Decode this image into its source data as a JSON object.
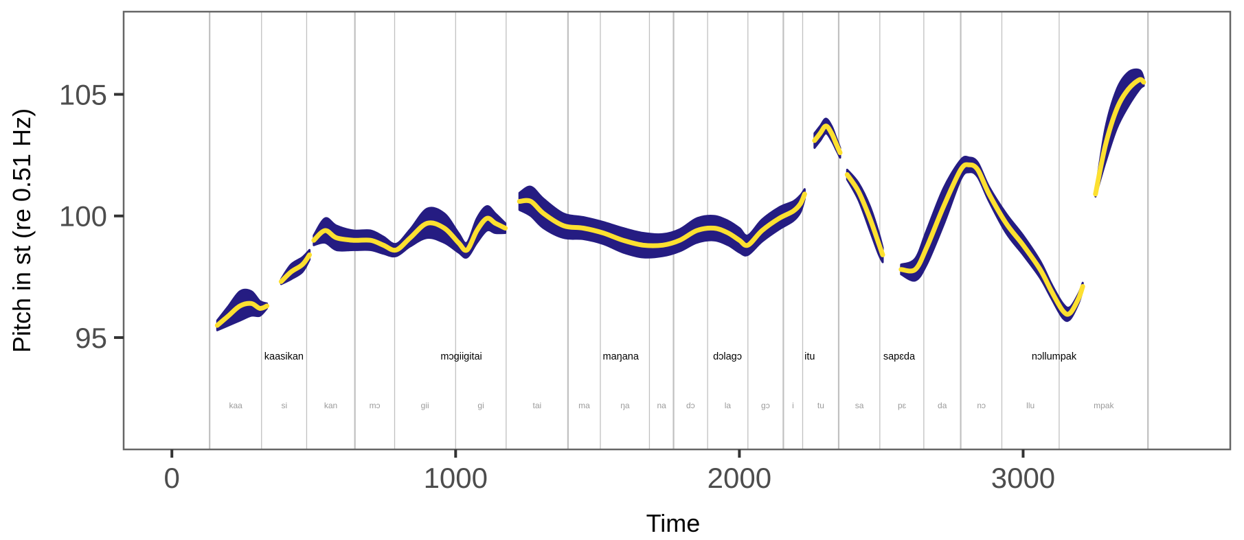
{
  "chart_data": {
    "type": "line",
    "title": "",
    "xlabel": "Time",
    "ylabel": "Pitch in st (re 0.51 Hz)",
    "xlim": [
      -170,
      3730
    ],
    "ylim": [
      90.4,
      108.4
    ],
    "x_ticks": [
      0,
      1000,
      2000,
      3000
    ],
    "y_ticks": [
      95,
      100,
      105
    ],
    "grid": false,
    "legend": "none",
    "colors": {
      "band": "#251c82",
      "line": "#fde030",
      "boundary": "#c0c0c0",
      "syllable_text": "#9a9a9a",
      "frame": "#666666"
    },
    "word_boundaries": [
      133,
      645,
      1396,
      1768,
      2155,
      2350,
      2780,
      3440
    ],
    "syllable_boundaries": [
      316,
      475,
      785,
      1000,
      1178,
      1510,
      1683,
      1888,
      2030,
      2223,
      2495,
      2650,
      2925,
      3127
    ],
    "words": [
      {
        "label": "kaasikan",
        "x": 395
      },
      {
        "label": "mɔgiigitai",
        "x": 1020
      },
      {
        "label": "maŋana",
        "x": 1582
      },
      {
        "label": "dɔlagɔ",
        "x": 1958
      },
      {
        "label": "itu",
        "x": 2248
      },
      {
        "label": "sapɛda",
        "x": 2563
      },
      {
        "label": "nɔllumpak",
        "x": 3109
      }
    ],
    "syllables": [
      {
        "label": "kaa",
        "x": 225
      },
      {
        "label": "si",
        "x": 396
      },
      {
        "label": "kan",
        "x": 560
      },
      {
        "label": "mɔ",
        "x": 715
      },
      {
        "label": "gii",
        "x": 892
      },
      {
        "label": "gi",
        "x": 1089
      },
      {
        "label": "tai",
        "x": 1287
      },
      {
        "label": "ma",
        "x": 1453
      },
      {
        "label": "ŋa",
        "x": 1597
      },
      {
        "label": "na",
        "x": 1726
      },
      {
        "label": "dɔ",
        "x": 1828
      },
      {
        "label": "la",
        "x": 1959
      },
      {
        "label": "gɔ",
        "x": 2092
      },
      {
        "label": "i",
        "x": 2189
      },
      {
        "label": "tu",
        "x": 2287
      },
      {
        "label": "sa",
        "x": 2423
      },
      {
        "label": "pɛ",
        "x": 2573
      },
      {
        "label": "da",
        "x": 2715
      },
      {
        "label": "nɔ",
        "x": 2853
      },
      {
        "label": "llu",
        "x": 3026
      },
      {
        "label": "mpak",
        "x": 3284
      }
    ],
    "series": [
      {
        "points": [
          [
            160,
            95.5,
            0.2
          ],
          [
            200,
            95.9,
            0.4
          ],
          [
            240,
            96.3,
            0.6
          ],
          [
            280,
            96.4,
            0.5
          ],
          [
            310,
            96.2,
            0.3
          ],
          [
            335,
            96.3,
            0.1
          ]
        ],
        "lineEnd": 335
      },
      {
        "points": [
          [
            385,
            97.3,
            0.1
          ],
          [
            420,
            97.7,
            0.3
          ],
          [
            460,
            98.0,
            0.3
          ],
          [
            485,
            98.4,
            0.2
          ]
        ],
        "lineEnd": 485
      },
      {
        "points": [
          [
            500,
            99.0,
            0.2
          ],
          [
            540,
            99.4,
            0.5
          ],
          [
            580,
            99.1,
            0.5
          ],
          [
            640,
            99.0,
            0.4
          ],
          [
            700,
            99.0,
            0.4
          ],
          [
            745,
            98.8,
            0.35
          ],
          [
            790,
            98.6,
            0.25
          ],
          [
            840,
            99.1,
            0.35
          ],
          [
            900,
            99.7,
            0.6
          ],
          [
            960,
            99.5,
            0.6
          ],
          [
            1010,
            98.9,
            0.4
          ],
          [
            1040,
            98.6,
            0.3
          ],
          [
            1075,
            99.4,
            0.5
          ],
          [
            1110,
            99.9,
            0.5
          ],
          [
            1140,
            99.7,
            0.4
          ],
          [
            1175,
            99.5,
            0.2
          ]
        ],
        "lineEnd": 1175
      },
      {
        "points": [
          [
            1225,
            100.6,
            0.35
          ],
          [
            1265,
            100.6,
            0.6
          ],
          [
            1310,
            100.1,
            0.6
          ],
          [
            1380,
            99.6,
            0.5
          ],
          [
            1450,
            99.5,
            0.45
          ],
          [
            1520,
            99.3,
            0.45
          ],
          [
            1590,
            99.0,
            0.5
          ],
          [
            1660,
            98.8,
            0.5
          ],
          [
            1730,
            98.8,
            0.45
          ],
          [
            1790,
            99.0,
            0.45
          ],
          [
            1850,
            99.4,
            0.5
          ],
          [
            1910,
            99.5,
            0.5
          ],
          [
            1960,
            99.3,
            0.5
          ],
          [
            2000,
            99.0,
            0.5
          ],
          [
            2030,
            98.8,
            0.4
          ],
          [
            2080,
            99.4,
            0.45
          ],
          [
            2140,
            99.9,
            0.45
          ],
          [
            2190,
            100.2,
            0.4
          ],
          [
            2215,
            100.5,
            0.35
          ],
          [
            2230,
            100.9,
            0.2
          ]
        ],
        "lineEnd": 2230
      },
      {
        "points": [
          [
            2265,
            103.1,
            0.3
          ],
          [
            2285,
            103.4,
            0.3
          ],
          [
            2305,
            103.7,
            0.3
          ],
          [
            2325,
            103.4,
            0.3
          ],
          [
            2340,
            103.0,
            0.25
          ],
          [
            2355,
            102.6,
            0.2
          ]
        ],
        "lineEnd": 2355
      },
      {
        "points": [
          [
            2380,
            101.7,
            0.2
          ],
          [
            2420,
            101.0,
            0.35
          ],
          [
            2460,
            99.9,
            0.5
          ],
          [
            2490,
            98.9,
            0.45
          ],
          [
            2505,
            98.4,
            0.3
          ]
        ],
        "lineEnd": 2505
      },
      {
        "points": [
          [
            2570,
            97.8,
            0.2
          ],
          [
            2620,
            97.8,
            0.45
          ],
          [
            2660,
            98.7,
            0.7
          ],
          [
            2720,
            100.4,
            0.75
          ],
          [
            2780,
            101.9,
            0.4
          ],
          [
            2810,
            102.1,
            0.3
          ],
          [
            2840,
            101.9,
            0.3
          ],
          [
            2880,
            100.9,
            0.3
          ],
          [
            2940,
            99.7,
            0.4
          ],
          [
            3000,
            98.8,
            0.4
          ],
          [
            3060,
            97.8,
            0.35
          ],
          [
            3100,
            96.9,
            0.3
          ],
          [
            3140,
            96.1,
            0.3
          ],
          [
            3165,
            96.0,
            0.25
          ],
          [
            3195,
            96.6,
            0.2
          ],
          [
            3210,
            97.1,
            0.15
          ]
        ],
        "lineEnd": 3210
      },
      {
        "points": [
          [
            3255,
            100.9,
            0.1
          ],
          [
            3290,
            102.9,
            0.7
          ],
          [
            3330,
            104.4,
            0.8
          ],
          [
            3370,
            105.2,
            0.7
          ],
          [
            3410,
            105.6,
            0.4
          ],
          [
            3425,
            105.5,
            0.15
          ]
        ],
        "lineEnd": 3425
      }
    ]
  }
}
